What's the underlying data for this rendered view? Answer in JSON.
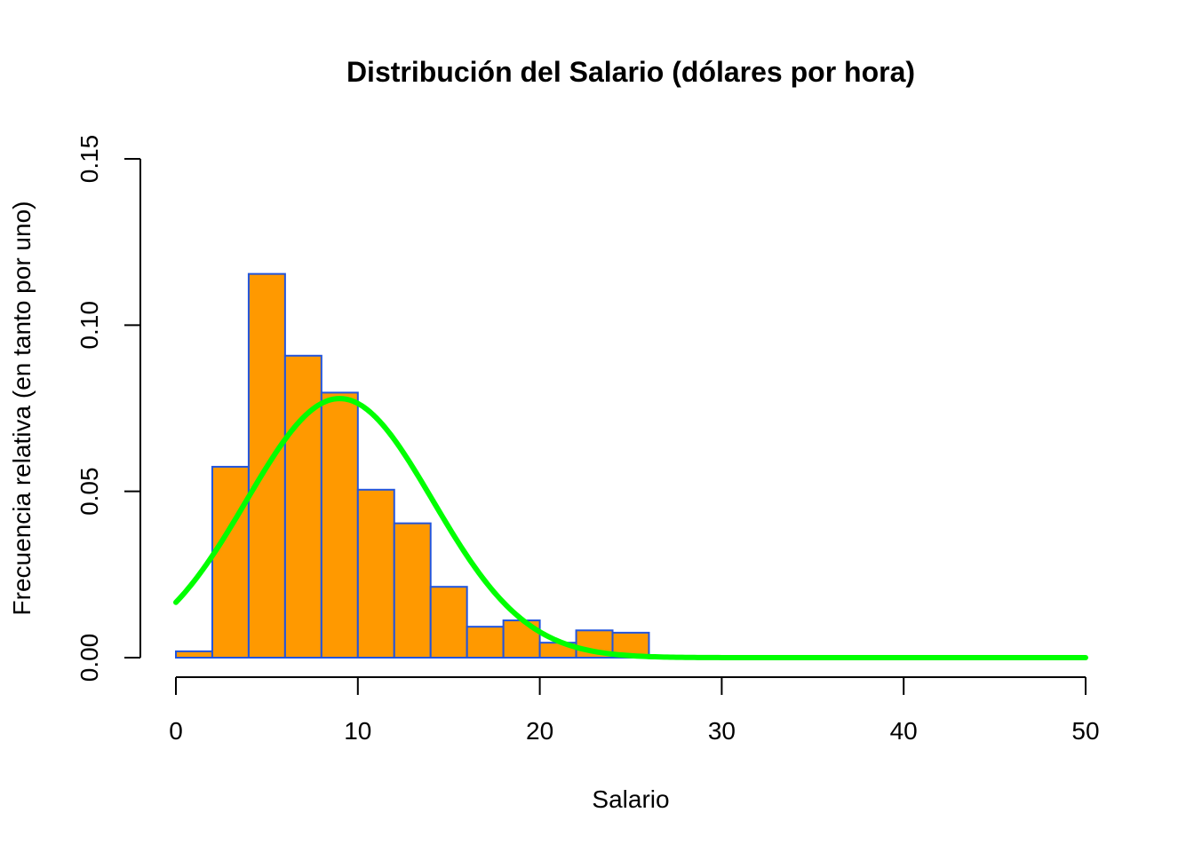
{
  "chart_data": {
    "type": "bar",
    "title": "Distribución del Salario (dólares por hora)",
    "xlabel": "Salario",
    "ylabel": "Frecuencia relativa (en tanto por uno)",
    "xlim": [
      0,
      50
    ],
    "ylim": [
      0,
      0.15
    ],
    "x_ticks": [
      "0",
      "10",
      "20",
      "30",
      "40",
      "50"
    ],
    "y_ticks": [
      "0.00",
      "0.05",
      "0.10",
      "0.15"
    ],
    "grid": false,
    "bin_width": 2,
    "bins": [
      {
        "start": 0,
        "end": 2,
        "value": 0.0019
      },
      {
        "start": 2,
        "end": 4,
        "value": 0.0574
      },
      {
        "start": 4,
        "end": 6,
        "value": 0.1154
      },
      {
        "start": 6,
        "end": 8,
        "value": 0.0908
      },
      {
        "start": 8,
        "end": 10,
        "value": 0.0797
      },
      {
        "start": 10,
        "end": 12,
        "value": 0.0505
      },
      {
        "start": 12,
        "end": 14,
        "value": 0.0404
      },
      {
        "start": 14,
        "end": 16,
        "value": 0.0213
      },
      {
        "start": 16,
        "end": 18,
        "value": 0.0093
      },
      {
        "start": 18,
        "end": 20,
        "value": 0.0112
      },
      {
        "start": 20,
        "end": 22,
        "value": 0.0045
      },
      {
        "start": 22,
        "end": 24,
        "value": 0.0082
      },
      {
        "start": 24,
        "end": 26,
        "value": 0.0075
      },
      {
        "start": 26,
        "end": 28,
        "value": 0.0004
      },
      {
        "start": 28,
        "end": 30,
        "value": 0
      },
      {
        "start": 30,
        "end": 32,
        "value": 0
      },
      {
        "start": 32,
        "end": 34,
        "value": 0
      },
      {
        "start": 34,
        "end": 36,
        "value": 0
      },
      {
        "start": 36,
        "end": 38,
        "value": 0
      },
      {
        "start": 38,
        "end": 40,
        "value": 0
      },
      {
        "start": 40,
        "end": 42,
        "value": 0
      },
      {
        "start": 42,
        "end": 44,
        "value": 0
      },
      {
        "start": 44,
        "end": 46,
        "value": 0.0004
      }
    ],
    "curve": {
      "type": "normal_density",
      "mean": 9.0,
      "sd": 5.12,
      "x_range": [
        0,
        50
      ],
      "color": "#00ff00"
    },
    "colors": {
      "bar_fill": "#ff9900",
      "bar_border": "#2255dd",
      "curve": "#00ff00"
    }
  }
}
